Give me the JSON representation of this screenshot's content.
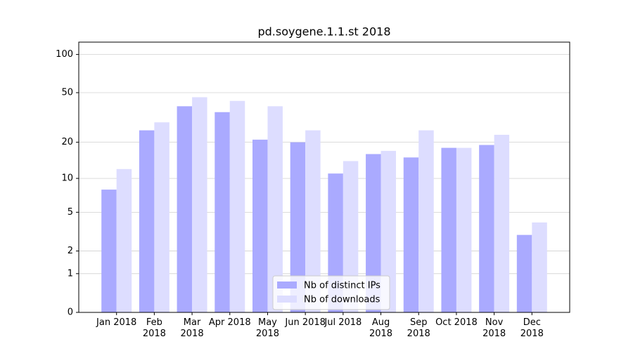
{
  "chart_data": {
    "type": "bar",
    "title": "pd.soygene.1.1.st 2018",
    "categories": [
      "Jan 2018",
      "Feb 2018",
      "Mar 2018",
      "Apr 2018",
      "May 2018",
      "Jun 2018",
      "Jul 2018",
      "Aug 2018",
      "Sep 2018",
      "Oct 2018",
      "Nov 2018",
      "Dec 2018"
    ],
    "series": [
      {
        "name": "Nb of distinct IPs",
        "color": "#aaaaff",
        "values": [
          8,
          25,
          39,
          35,
          21,
          20,
          11,
          16,
          15,
          18,
          19,
          3
        ]
      },
      {
        "name": "Nb of downloads",
        "color": "#ddddff",
        "values": [
          12,
          29,
          46,
          43,
          39,
          25,
          14,
          17,
          25,
          18,
          23,
          4
        ]
      }
    ],
    "y_scale": "log1p",
    "ylim": [
      0,
      125
    ],
    "yticks": [
      0,
      1,
      2,
      5,
      10,
      20,
      50,
      100
    ],
    "grid": true,
    "legend": "lower center"
  }
}
